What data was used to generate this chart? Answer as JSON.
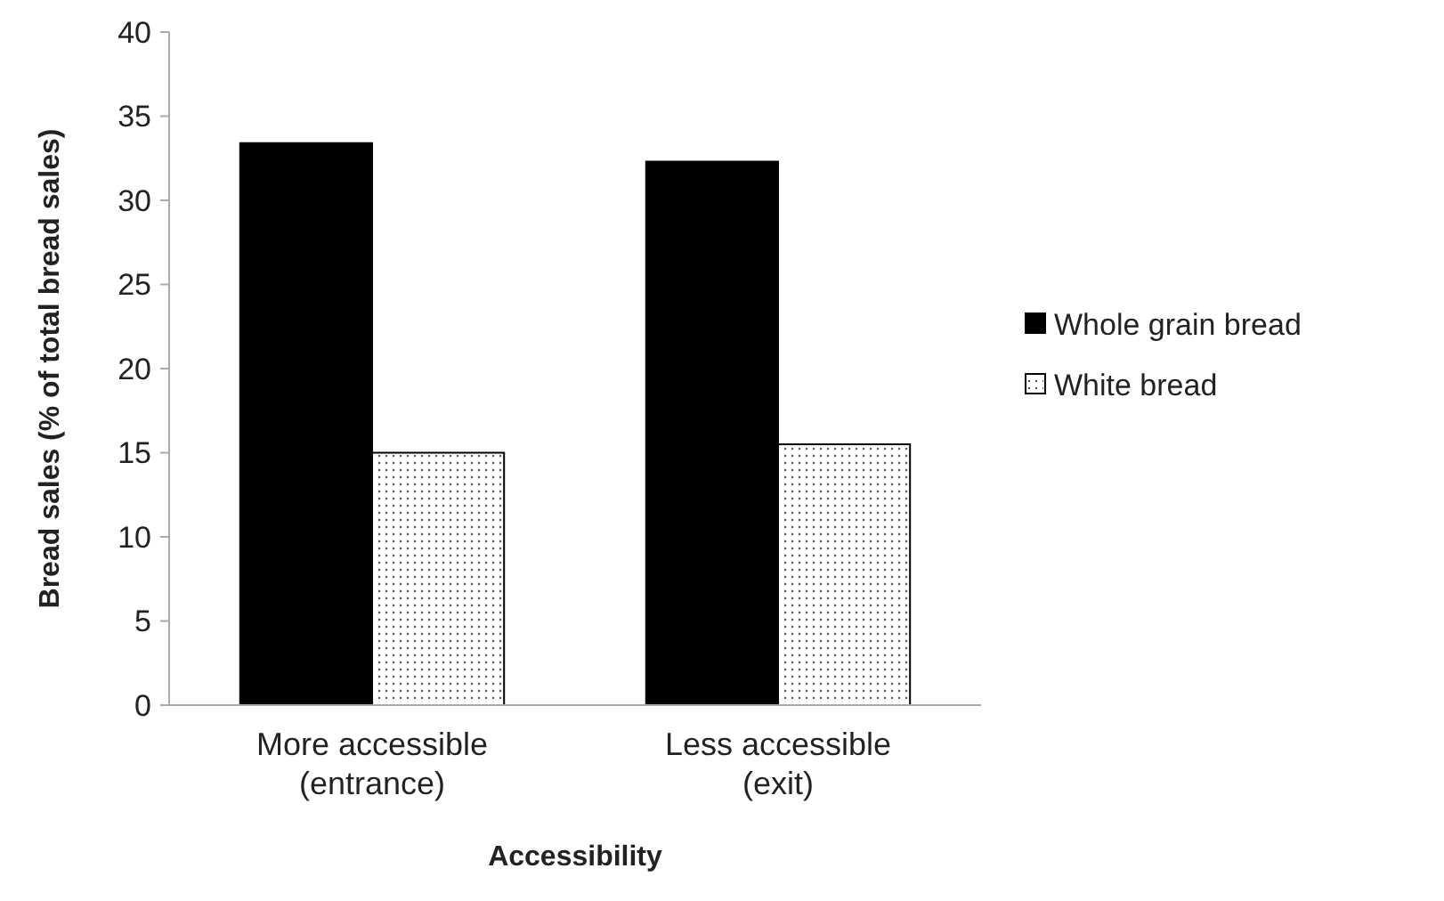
{
  "chart_data": {
    "type": "bar",
    "xlabel": "Accessibility",
    "ylabel": "Bread sales (% of total bread sales)",
    "categories": [
      "More accessible\n(entrance)",
      "Less accessible\n(exit)"
    ],
    "series": [
      {
        "name": "Whole grain bread",
        "color": "#000000",
        "values": [
          33.4,
          32.3
        ]
      },
      {
        "name": "White bread",
        "color": "#ffffff",
        "values": [
          15,
          15.5
        ]
      }
    ],
    "ylim": [
      0,
      40
    ],
    "yticks": [
      0,
      5,
      10,
      15,
      20,
      25,
      30,
      35,
      40
    ],
    "grid": false,
    "legend": "right"
  }
}
